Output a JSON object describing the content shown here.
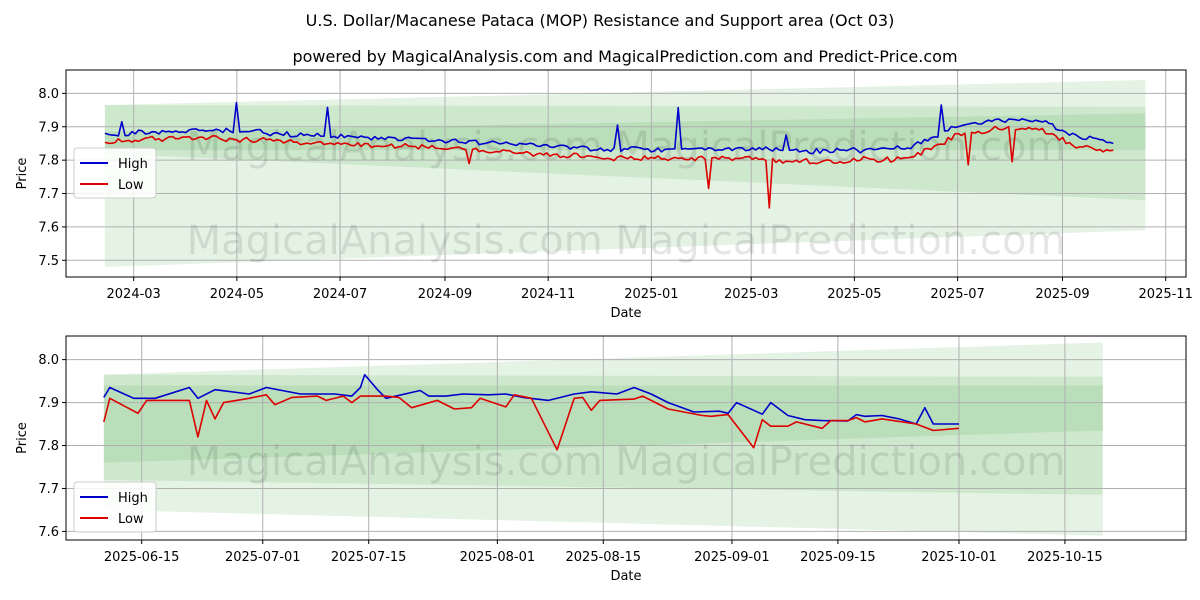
{
  "title": "U.S. Dollar/Macanese Pataca (MOP) Resistance and Support area (Oct 03)",
  "subtitle": "powered by MagicalAnalysis.com and MagicalPrediction.com and Predict-Price.com",
  "watermark": "MagicalAnalysis.com    MagicalPrediction.com",
  "colors": {
    "high": "#0000cc",
    "low": "#dd0000",
    "band": "#2ca02c"
  },
  "chart_data": [
    {
      "type": "line",
      "xlabel": "Date",
      "ylabel": "Price",
      "x_start": "2024-02-13",
      "x_end": "2025-10-01",
      "xlim": [
        "2024-01-21",
        "2025-11-13"
      ],
      "ylim": [
        7.45,
        8.07
      ],
      "x_ticks": [
        "2024-03",
        "2024-05",
        "2024-07",
        "2024-09",
        "2024-11",
        "2025-01",
        "2025-03",
        "2025-05",
        "2025-07",
        "2025-09",
        "2025-11"
      ],
      "y_ticks": [
        7.5,
        7.6,
        7.7,
        7.8,
        7.9,
        8.0
      ],
      "legend": {
        "position": "middle-left",
        "entries": [
          "High",
          "Low"
        ]
      },
      "series": [
        {
          "name": "High",
          "anchors": [
            [
              0,
              7.87
            ],
            [
              0.04,
              7.88
            ],
            [
              0.1,
              7.885
            ],
            [
              0.15,
              7.88
            ],
            [
              0.2,
              7.87
            ],
            [
              0.25,
              7.865
            ],
            [
              0.3,
              7.86
            ],
            [
              0.35,
              7.852
            ],
            [
              0.4,
              7.845
            ],
            [
              0.45,
              7.838
            ],
            [
              0.5,
              7.83
            ],
            [
              0.55,
              7.828
            ],
            [
              0.6,
              7.83
            ],
            [
              0.65,
              7.83
            ],
            [
              0.7,
              7.822
            ],
            [
              0.75,
              7.825
            ],
            [
              0.8,
              7.835
            ],
            [
              0.85,
              7.905
            ],
            [
              0.9,
              7.918
            ],
            [
              0.93,
              7.91
            ],
            [
              0.96,
              7.87
            ],
            [
              1,
              7.85
            ]
          ]
        },
        {
          "name": "Low",
          "anchors": [
            [
              0,
              7.86
            ],
            [
              0.04,
              7.868
            ],
            [
              0.1,
              7.872
            ],
            [
              0.15,
              7.865
            ],
            [
              0.2,
              7.858
            ],
            [
              0.25,
              7.852
            ],
            [
              0.3,
              7.848
            ],
            [
              0.35,
              7.84
            ],
            [
              0.4,
              7.832
            ],
            [
              0.45,
              7.822
            ],
            [
              0.5,
              7.812
            ],
            [
              0.55,
              7.81
            ],
            [
              0.6,
              7.812
            ],
            [
              0.65,
              7.81
            ],
            [
              0.7,
              7.8
            ],
            [
              0.75,
              7.805
            ],
            [
              0.8,
              7.815
            ],
            [
              0.85,
              7.89
            ],
            [
              0.9,
              7.905
            ],
            [
              0.93,
              7.895
            ],
            [
              0.96,
              7.85
            ],
            [
              1,
              7.835
            ]
          ]
        }
      ],
      "spikes": [
        [
          0.017,
          "High",
          7.915
        ],
        [
          0.13,
          "High",
          7.972
        ],
        [
          0.22,
          "High",
          7.958
        ],
        [
          0.36,
          "Low",
          7.79
        ],
        [
          0.51,
          "High",
          7.905
        ],
        [
          0.57,
          "High",
          7.957
        ],
        [
          0.6,
          "Low",
          7.715
        ],
        [
          0.66,
          "Low",
          7.657
        ],
        [
          0.675,
          "High",
          7.875
        ],
        [
          0.83,
          "High",
          7.965
        ],
        [
          0.855,
          "Low",
          7.786
        ],
        [
          0.9,
          "Low",
          7.795
        ]
      ],
      "bands": [
        {
          "label": "wide band",
          "x0": "2024-02-13",
          "x1": "2025-10-20",
          "y0": [
            7.48,
            7.965
          ],
          "y1": [
            7.59,
            8.04
          ],
          "opacity": 0.12
        },
        {
          "label": "middle band",
          "x0": "2024-02-13",
          "x1": "2025-10-20",
          "y0": [
            7.82,
            7.965
          ],
          "y1": [
            7.68,
            7.96
          ],
          "opacity": 0.12
        },
        {
          "label": "core band",
          "x0": "2024-02-13",
          "x1": "2025-10-20",
          "y0": [
            7.83,
            7.885
          ],
          "y1": [
            7.83,
            7.94
          ],
          "opacity": 0.12
        }
      ]
    },
    {
      "type": "line",
      "xlabel": "Date",
      "ylabel": "Price",
      "x_start": "2025-06-10",
      "x_end": "2025-10-01",
      "xlim": [
        "2025-06-05",
        "2025-10-31"
      ],
      "ylim": [
        7.58,
        8.055
      ],
      "x_ticks": [
        "2025-06-15",
        "2025-07-01",
        "2025-07-15",
        "2025-08-01",
        "2025-08-15",
        "2025-09-01",
        "2025-09-15",
        "2025-10-01",
        "2025-10-15"
      ],
      "y_ticks": [
        7.6,
        7.7,
        7.8,
        7.9,
        8.0
      ],
      "legend": {
        "position": "lower-left",
        "entries": [
          "High",
          "Low"
        ]
      },
      "series": [
        {
          "name": "High",
          "points": [
            [
              0,
              7.912
            ],
            [
              0.007,
              7.935
            ],
            [
              0.035,
              7.91
            ],
            [
              0.06,
              7.91
            ],
            [
              0.1,
              7.935
            ],
            [
              0.11,
              7.91
            ],
            [
              0.13,
              7.93
            ],
            [
              0.17,
              7.92
            ],
            [
              0.19,
              7.935
            ],
            [
              0.23,
              7.92
            ],
            [
              0.27,
              7.92
            ],
            [
              0.29,
              7.915
            ],
            [
              0.3,
              7.935
            ],
            [
              0.305,
              7.965
            ],
            [
              0.32,
              7.93
            ],
            [
              0.33,
              7.91
            ],
            [
              0.37,
              7.928
            ],
            [
              0.38,
              7.915
            ],
            [
              0.4,
              7.915
            ],
            [
              0.42,
              7.92
            ],
            [
              0.45,
              7.918
            ],
            [
              0.47,
              7.92
            ],
            [
              0.49,
              7.912
            ],
            [
              0.52,
              7.905
            ],
            [
              0.55,
              7.92
            ],
            [
              0.57,
              7.925
            ],
            [
              0.6,
              7.92
            ],
            [
              0.62,
              7.935
            ],
            [
              0.64,
              7.92
            ],
            [
              0.66,
              7.9
            ],
            [
              0.69,
              7.878
            ],
            [
              0.72,
              7.88
            ],
            [
              0.73,
              7.875
            ],
            [
              0.74,
              7.9
            ],
            [
              0.77,
              7.873
            ],
            [
              0.78,
              7.9
            ],
            [
              0.8,
              7.87
            ],
            [
              0.82,
              7.86
            ],
            [
              0.84,
              7.858
            ],
            [
              0.87,
              7.857
            ],
            [
              0.88,
              7.872
            ],
            [
              0.89,
              7.868
            ],
            [
              0.91,
              7.87
            ],
            [
              0.93,
              7.862
            ],
            [
              0.95,
              7.85
            ],
            [
              0.96,
              7.888
            ],
            [
              0.97,
              7.85
            ],
            [
              1,
              7.85
            ]
          ]
        },
        {
          "name": "Low",
          "points": [
            [
              0,
              7.855
            ],
            [
              0.007,
              7.91
            ],
            [
              0.04,
              7.875
            ],
            [
              0.05,
              7.905
            ],
            [
              0.1,
              7.905
            ],
            [
              0.11,
              7.82
            ],
            [
              0.12,
              7.905
            ],
            [
              0.13,
              7.862
            ],
            [
              0.14,
              7.9
            ],
            [
              0.17,
              7.91
            ],
            [
              0.19,
              7.918
            ],
            [
              0.2,
              7.895
            ],
            [
              0.22,
              7.912
            ],
            [
              0.25,
              7.915
            ],
            [
              0.26,
              7.905
            ],
            [
              0.28,
              7.915
            ],
            [
              0.29,
              7.9
            ],
            [
              0.3,
              7.915
            ],
            [
              0.33,
              7.915
            ],
            [
              0.345,
              7.912
            ],
            [
              0.36,
              7.888
            ],
            [
              0.39,
              7.905
            ],
            [
              0.41,
              7.885
            ],
            [
              0.43,
              7.888
            ],
            [
              0.44,
              7.91
            ],
            [
              0.47,
              7.89
            ],
            [
              0.48,
              7.918
            ],
            [
              0.5,
              7.91
            ],
            [
              0.53,
              7.79
            ],
            [
              0.55,
              7.91
            ],
            [
              0.56,
              7.912
            ],
            [
              0.57,
              7.882
            ],
            [
              0.58,
              7.905
            ],
            [
              0.62,
              7.908
            ],
            [
              0.63,
              7.915
            ],
            [
              0.64,
              7.905
            ],
            [
              0.66,
              7.885
            ],
            [
              0.7,
              7.87
            ],
            [
              0.71,
              7.868
            ],
            [
              0.73,
              7.872
            ],
            [
              0.76,
              7.795
            ],
            [
              0.77,
              7.86
            ],
            [
              0.78,
              7.845
            ],
            [
              0.8,
              7.845
            ],
            [
              0.81,
              7.855
            ],
            [
              0.84,
              7.84
            ],
            [
              0.85,
              7.858
            ],
            [
              0.87,
              7.858
            ],
            [
              0.88,
              7.865
            ],
            [
              0.89,
              7.855
            ],
            [
              0.91,
              7.862
            ],
            [
              0.95,
              7.85
            ],
            [
              0.97,
              7.835
            ],
            [
              1,
              7.84
            ]
          ]
        }
      ],
      "bands": [
        {
          "label": "wide band",
          "x0": "2025-06-10",
          "x1": "2025-10-20",
          "y0": [
            7.65,
            7.965
          ],
          "y1": [
            7.59,
            8.04
          ],
          "opacity": 0.12
        },
        {
          "label": "middle band",
          "x0": "2025-06-10",
          "x1": "2025-10-20",
          "y0": [
            7.72,
            7.965
          ],
          "y1": [
            7.685,
            7.96
          ],
          "opacity": 0.12
        },
        {
          "label": "core band",
          "x0": "2025-06-10",
          "x1": "2025-10-20",
          "y0": [
            7.76,
            7.94
          ],
          "y1": [
            7.835,
            7.94
          ],
          "opacity": 0.12
        }
      ]
    }
  ]
}
